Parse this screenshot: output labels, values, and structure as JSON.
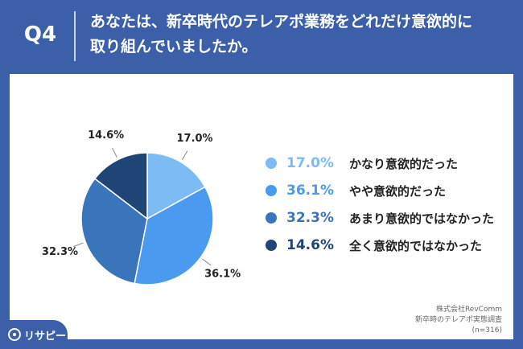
{
  "header": {
    "q_label": "Q4",
    "title_line1": "あなたは、新卒時代のテレアポ業務をどれだけ意欲的に",
    "title_line2": "取り組んでいましたか。"
  },
  "chart_data": {
    "type": "pie",
    "categories": [
      "かなり意欲的だった",
      "やや意欲的だった",
      "あまり意欲的ではなかった",
      "全く意欲的ではなかった"
    ],
    "values": [
      17.0,
      36.1,
      32.3,
      14.6
    ],
    "value_labels": [
      "17.0%",
      "36.1%",
      "32.3%",
      "14.6%"
    ],
    "colors": [
      "#7dbbf5",
      "#4a9bef",
      "#3a74ba",
      "#1f4476"
    ],
    "legend_placement": "right"
  },
  "source": {
    "line1": "株式会社RevComm",
    "line2": "新卒時のテレアポ実態調査",
    "line3": "(n=316)"
  },
  "brand": {
    "name": "リサピー"
  }
}
